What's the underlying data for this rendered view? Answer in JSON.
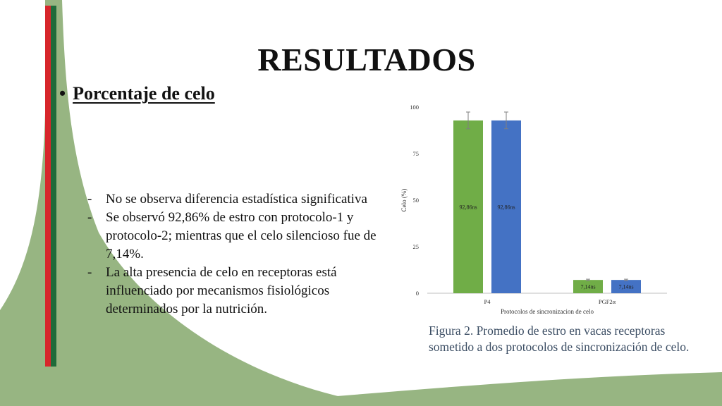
{
  "slide": {
    "title": "RESULTADOS",
    "subtitle": "Porcentaje de celo",
    "bullet_symbol": "•",
    "findings": [
      "No se observa diferencia estadística significativa",
      "Se observó 92,86% de estro con protocolo-1 y protocolo-2; mientras que el celo silencioso fue de 7,14%.",
      " La alta presencia de celo en receptoras está influenciado por mecanismos fisiológicos determinados por la nutrición."
    ],
    "dash": "-",
    "caption": "Figura 2. Promedio de estro en vacas receptoras sometido a dos protocolos de sincronización de celo.",
    "colors": {
      "green_bar": "#70ad47",
      "blue_bar": "#4472c4",
      "decor_green": "#97b582",
      "stripe_red": "#d7262b",
      "stripe_dark_green": "#1f6b3a",
      "caption_text": "#3c4e64"
    }
  },
  "chart_data": {
    "type": "bar",
    "categories": [
      "P4",
      "PGF2α"
    ],
    "series": [
      {
        "values": [
          92.86,
          7.14
        ],
        "labels": [
          "92,86ns",
          "7,14ns"
        ],
        "color": "#70ad47",
        "error": [
          4.5,
          0.4
        ]
      },
      {
        "values": [
          92.86,
          7.14
        ],
        "labels": [
          "92,86ns",
          "7,14ns"
        ],
        "color": "#4472c4",
        "error": [
          4.5,
          0.4
        ]
      }
    ],
    "xlabel": "Protocolos de sincronizacion de celo",
    "ylabel": "Celo (%)",
    "ylim": [
      0,
      100
    ],
    "yticks": [
      0,
      25,
      50,
      75,
      100
    ],
    "grid": false,
    "legend": "none"
  }
}
